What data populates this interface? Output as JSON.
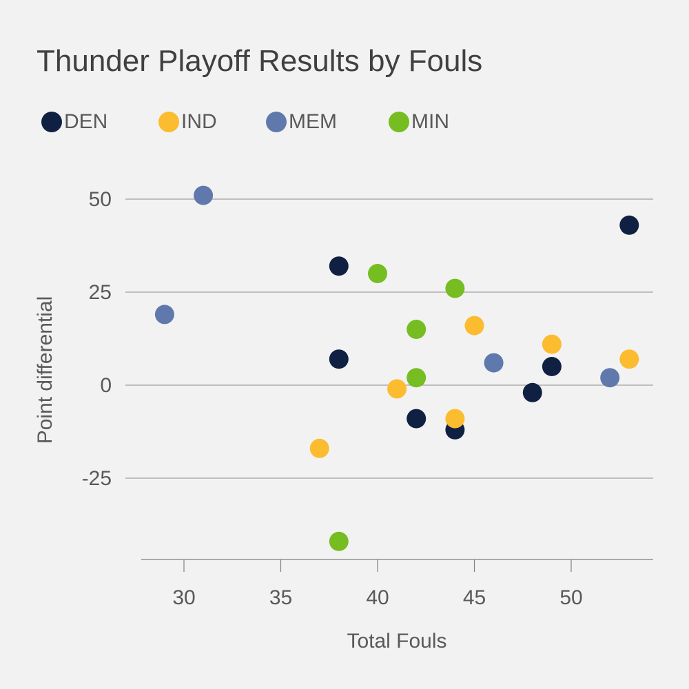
{
  "chart_data": {
    "type": "scatter",
    "title": "Thunder Playoff Results by Fouls",
    "xlabel": "Total Fouls",
    "ylabel": "Point differential",
    "xlim": [
      28,
      54
    ],
    "ylim": [
      -47,
      60
    ],
    "x_ticks": [
      "30",
      "35",
      "40",
      "45",
      "50"
    ],
    "y_ticks": [
      "50",
      "25",
      "0",
      "-25"
    ],
    "grid": "horizontal",
    "legend_position": "top-left",
    "series": [
      {
        "name": "DEN",
        "color": "#0f2042",
        "points": [
          [
            38,
            32
          ],
          [
            38,
            7
          ],
          [
            42,
            -9
          ],
          [
            44,
            -12
          ],
          [
            48,
            -2
          ],
          [
            49,
            5
          ],
          [
            53,
            43
          ]
        ]
      },
      {
        "name": "IND",
        "color": "#fbbc30",
        "points": [
          [
            37,
            -17
          ],
          [
            41,
            -1
          ],
          [
            44,
            -9
          ],
          [
            45,
            16
          ],
          [
            49,
            11
          ],
          [
            53,
            7
          ]
        ]
      },
      {
        "name": "MEM",
        "color": "#6079ad",
        "points": [
          [
            29,
            19
          ],
          [
            31,
            51
          ],
          [
            46,
            6
          ],
          [
            52,
            2
          ]
        ]
      },
      {
        "name": "MIN",
        "color": "#76bd22",
        "points": [
          [
            38,
            -42
          ],
          [
            40,
            30
          ],
          [
            42,
            15
          ],
          [
            42,
            2
          ],
          [
            44,
            26
          ]
        ]
      }
    ]
  }
}
